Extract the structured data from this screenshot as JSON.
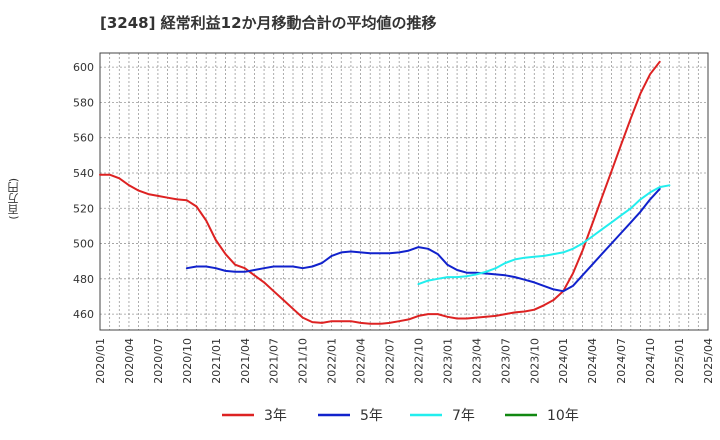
{
  "chart_data": {
    "type": "line",
    "title": "[3248]  経常利益12か月移動合計の平均値の推移",
    "ylabel": "(百万円)",
    "xlabel": "",
    "ylim": [
      451,
      608
    ],
    "yticks": [
      460,
      480,
      500,
      520,
      540,
      560,
      580,
      600
    ],
    "xticks": [
      "2020/01",
      "2020/04",
      "2020/07",
      "2020/10",
      "2021/01",
      "2021/04",
      "2021/07",
      "2021/10",
      "2022/01",
      "2022/04",
      "2022/07",
      "2022/10",
      "2023/01",
      "2023/04",
      "2023/07",
      "2023/10",
      "2024/01",
      "2024/04",
      "2024/07",
      "2024/10",
      "2025/01",
      "2025/04"
    ],
    "grid": true,
    "x_start": "2020/01",
    "series": [
      {
        "name": "3年",
        "color": "#dd2222",
        "start": 0,
        "values": [
          539,
          539,
          537,
          533,
          530,
          528,
          527,
          526,
          525,
          524.5,
          521,
          513,
          502,
          494,
          488,
          486,
          482,
          478,
          473,
          468,
          463,
          458,
          455.5,
          455,
          456,
          456,
          456,
          455,
          454.5,
          454.5,
          455,
          456,
          457,
          459,
          460,
          460,
          458.5,
          457.5,
          457.5,
          458,
          458.5,
          459,
          460,
          461,
          461.5,
          462.5,
          465,
          468,
          473,
          483,
          496,
          511,
          526,
          541,
          556,
          571,
          585,
          596,
          603
        ]
      },
      {
        "name": "5年",
        "color": "#1122cc",
        "start": 9,
        "values": [
          486,
          487,
          487,
          486,
          484.5,
          484,
          484,
          485,
          486,
          487,
          487,
          487,
          486,
          487,
          489,
          493,
          495,
          495.5,
          495,
          494.5,
          494.5,
          494.5,
          495,
          496,
          498,
          497,
          494,
          488,
          485,
          483.5,
          483.5,
          483,
          482.5,
          482,
          481,
          479.5,
          478,
          476,
          474,
          473,
          476,
          482,
          488,
          494,
          500,
          506,
          512,
          518,
          525,
          531
        ]
      },
      {
        "name": "7年",
        "color": "#22eeee",
        "start": 33,
        "values": [
          477,
          479,
          480,
          481,
          481,
          481.5,
          482.5,
          484,
          486,
          489,
          491,
          492,
          492.5,
          493,
          494,
          495,
          497,
          500,
          504,
          508,
          512,
          516,
          520,
          525,
          529,
          532,
          533
        ]
      },
      {
        "name": "10年",
        "color": "#118811",
        "start": 0,
        "values": []
      }
    ]
  }
}
